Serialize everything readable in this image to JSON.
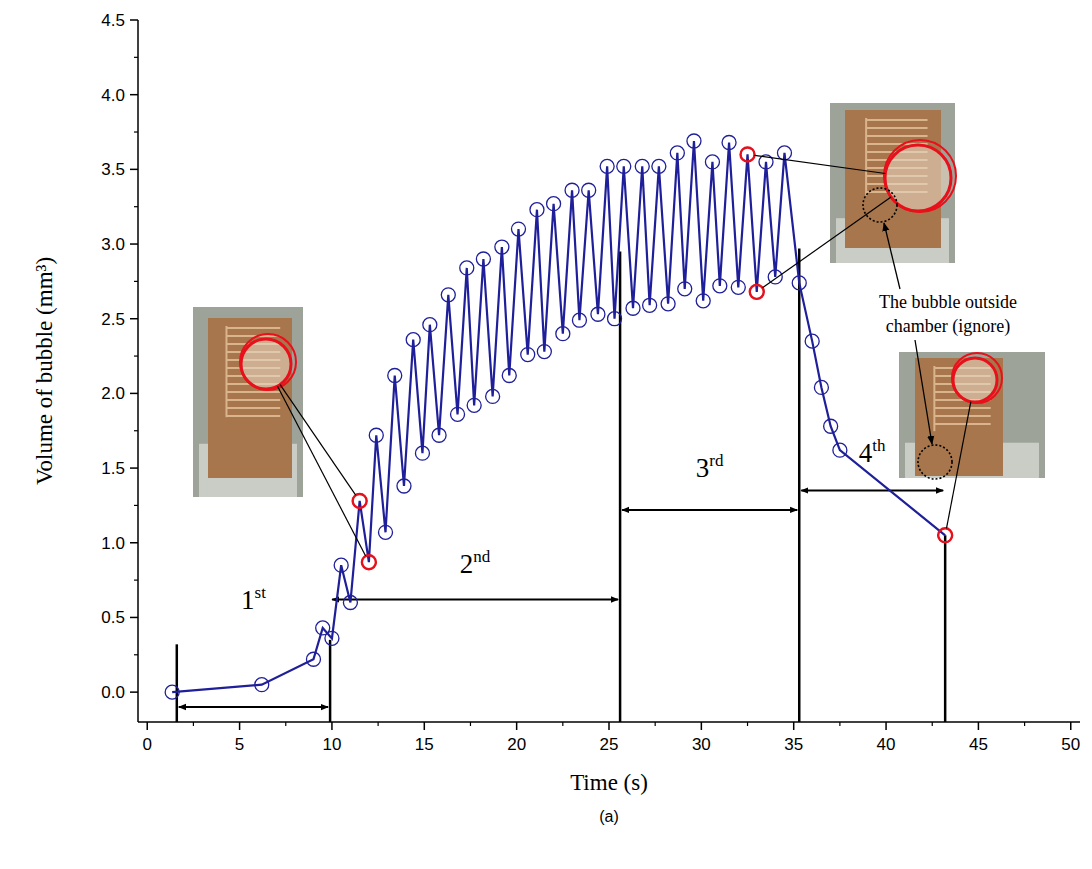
{
  "chart_data": {
    "type": "line",
    "x_label": "Time (s)",
    "y_label": "Volume of bubble (mm³)",
    "caption": "(a)",
    "xlim": [
      -0.5,
      50.5
    ],
    "ylim": [
      -0.2,
      4.5
    ],
    "xticks": [
      0,
      5,
      10,
      15,
      20,
      25,
      30,
      35,
      40,
      45,
      50
    ],
    "yticks": [
      {
        "value": 0,
        "label": "0.0"
      },
      0.5,
      {
        "value": 1,
        "label": "1.0"
      },
      1.5,
      {
        "value": 2,
        "label": "2.0"
      },
      2.5,
      {
        "value": 3,
        "label": "3.0"
      },
      3.5,
      {
        "value": 4,
        "label": "4.0"
      },
      4.5
    ],
    "grid": false,
    "series": [
      {
        "type": "line",
        "color": "#1f1f99",
        "marker": "circle",
        "line_style": "solid",
        "x": [
          1.35,
          6.2,
          9.0,
          9.5,
          10.0,
          10.5,
          11.0,
          11.5,
          12.0,
          12.4,
          12.9,
          13.4,
          13.9,
          14.4,
          14.9,
          15.3,
          15.8,
          16.3,
          16.8,
          17.3,
          17.7,
          18.2,
          18.7,
          19.2,
          19.6,
          20.1,
          20.6,
          21.1,
          21.5,
          22.0,
          22.5,
          23.0,
          23.4,
          23.9,
          24.4,
          24.9,
          25.3,
          25.8,
          26.3,
          26.8,
          27.2,
          27.7,
          28.2,
          28.7,
          29.1,
          29.6,
          30.1,
          30.6,
          31.0,
          31.5,
          32.0,
          32.5,
          33.0,
          33.5,
          34.0,
          34.5,
          35.3,
          36.0,
          36.5,
          37.0,
          37.5,
          43.2
        ],
        "values": [
          0,
          0.05,
          0.22,
          0.43,
          0.36,
          0.85,
          0.6,
          1.28,
          0.87,
          1.72,
          1.07,
          2.12,
          1.38,
          2.36,
          1.6,
          2.46,
          1.72,
          2.66,
          1.86,
          2.84,
          1.92,
          2.9,
          1.98,
          2.98,
          2.12,
          3.1,
          2.26,
          3.23,
          2.28,
          3.27,
          2.4,
          3.36,
          2.49,
          3.36,
          2.53,
          3.52,
          2.5,
          3.52,
          2.57,
          3.52,
          2.59,
          3.52,
          2.6,
          3.61,
          2.7,
          3.69,
          2.62,
          3.55,
          2.72,
          3.68,
          2.71,
          3.6,
          2.68,
          3.55,
          2.78,
          3.61,
          2.74,
          2.35,
          2.04,
          1.78,
          1.62,
          1.05
        ]
      },
      {
        "type": "scatter",
        "color": "#e8101a",
        "marker": "circle",
        "x": [
          11.5,
          12.0,
          32.5,
          33.0,
          43.2
        ],
        "values": [
          1.28,
          0.87,
          3.6,
          2.68,
          1.05
        ]
      }
    ],
    "phases": [
      {
        "label": "1st",
        "start": 1.6,
        "end": 9.9,
        "arrow_y": -0.1,
        "label_y": 0.62
      },
      {
        "label": "2nd",
        "start": 9.9,
        "end": 25.6,
        "arrow_y": 0.62,
        "label_y": 0.86
      },
      {
        "label": "3rd",
        "start": 25.6,
        "end": 35.3,
        "arrow_y": 1.22,
        "label_y": 1.5
      },
      {
        "label": "4th",
        "start": 35.3,
        "end": 43.2,
        "arrow_y": 1.35,
        "label_y": 1.6
      }
    ],
    "boundaries": [
      {
        "x": 1.6,
        "top": 0.32
      },
      {
        "x": 9.9,
        "top": 0.35
      },
      {
        "x": 25.6,
        "top": 2.95
      },
      {
        "x": 35.3,
        "top": 2.97
      },
      {
        "x": 43.2,
        "top": 1.05
      }
    ],
    "annotation": [
      "The bubble outside",
      "chamber (ignore)"
    ]
  }
}
